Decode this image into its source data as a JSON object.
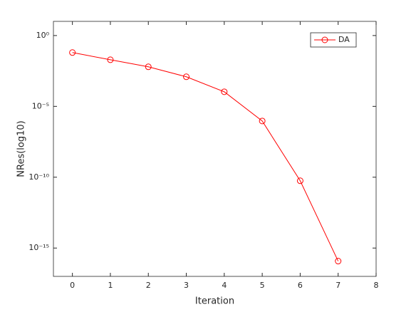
{
  "chart_data": {
    "type": "line",
    "x_label": "Iteration",
    "y_label": "NRes(log10)",
    "x": [
      0,
      1,
      2,
      3,
      4,
      5,
      6,
      7
    ],
    "series": [
      {
        "name": "DA",
        "color": "#ff0000",
        "marker": "circle",
        "values": [
          0.063,
          0.0195,
          0.0062,
          0.00123,
          0.000107,
          9.3e-07,
          5.6e-11,
          1.2e-16
        ]
      }
    ],
    "xlim": [
      -0.5,
      8
    ],
    "xticks": [
      0,
      1,
      2,
      3,
      4,
      5,
      6,
      7,
      8
    ],
    "ylim": [
      1e-17,
      10
    ],
    "yticks": [
      {
        "value": 1,
        "label": "10⁰"
      },
      {
        "value": 1e-05,
        "label": "10⁻⁵"
      },
      {
        "value": 1e-10,
        "label": "10⁻¹⁰"
      },
      {
        "value": 1e-15,
        "label": "10⁻¹⁵"
      }
    ],
    "yscale": "log",
    "grid": false,
    "legend": "northeast"
  }
}
